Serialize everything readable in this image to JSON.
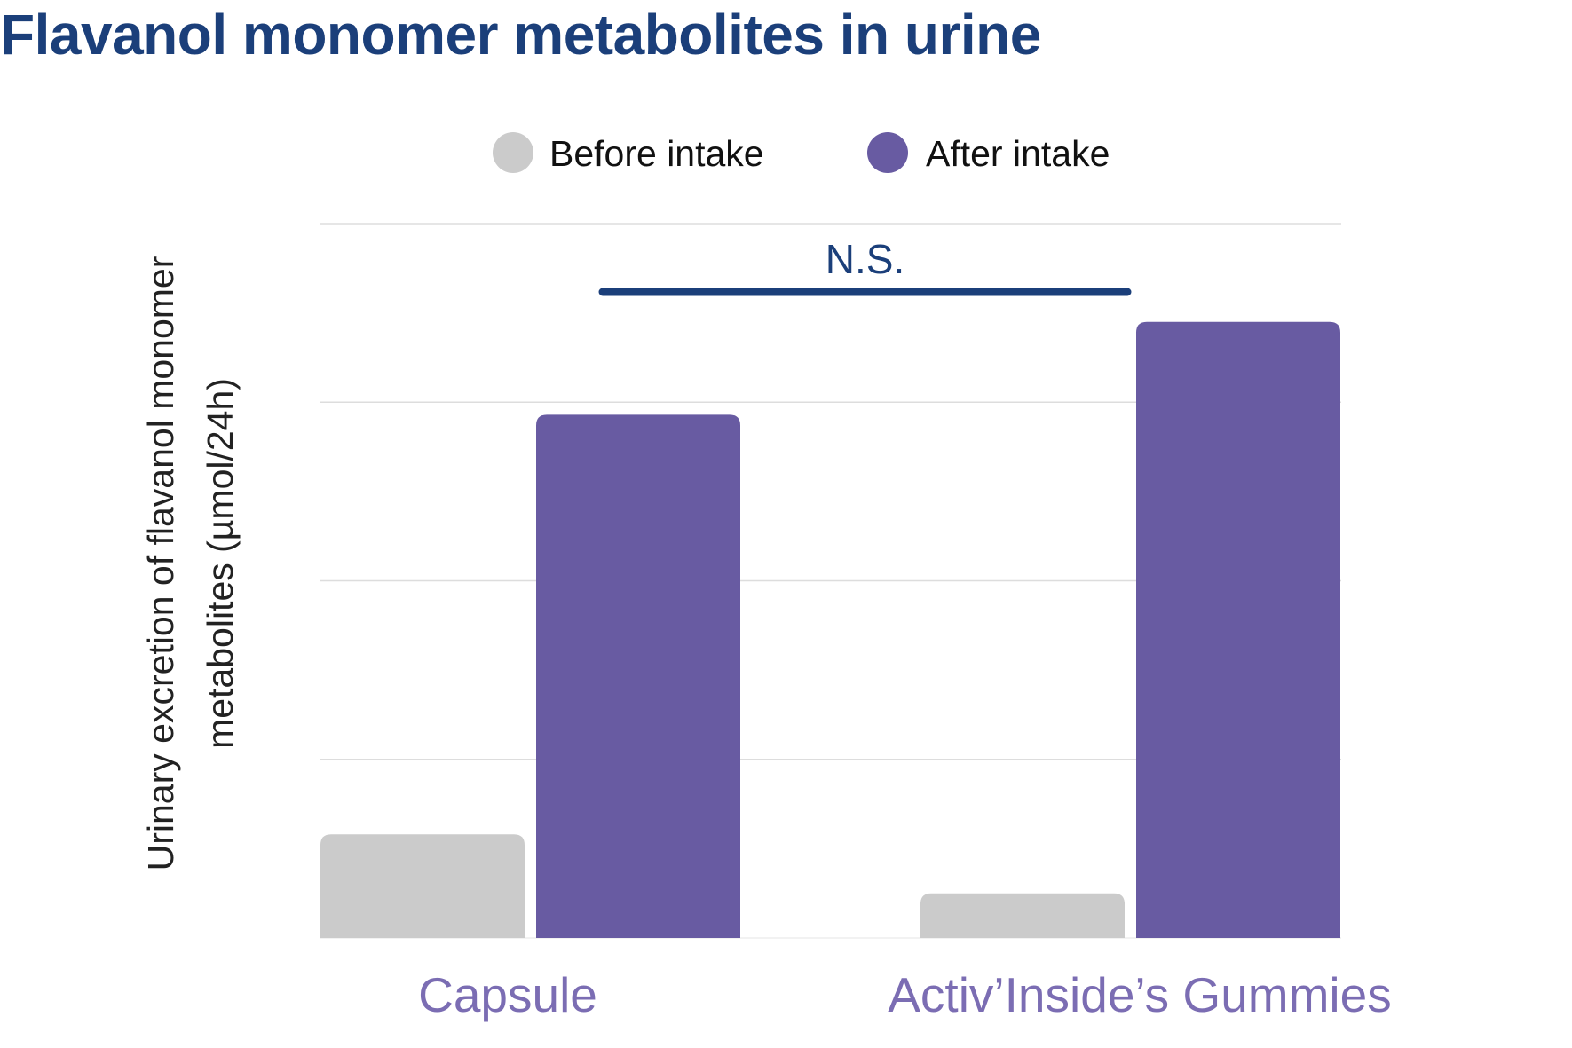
{
  "chart_data": {
    "type": "bar",
    "title": "Flavanol monomer metabolites in urine",
    "ylabel_lines": [
      "Urinary excretion of flavanol monomer",
      "metabolites  (µmol/24h)"
    ],
    "categories": [
      "Capsule",
      "Activ’Inside’s Gummies"
    ],
    "series": [
      {
        "name": "Before intake",
        "color": "#cbcbcb",
        "values": [
          0.58,
          0.25
        ]
      },
      {
        "name": "After intake",
        "color": "#685ba2",
        "values": [
          2.93,
          3.45
        ]
      }
    ],
    "ylim": [
      0,
      4
    ],
    "y_gridlines": [
      1,
      2,
      3,
      4
    ],
    "grid": true,
    "y_tick_labels_shown": false,
    "legend_position": "top-center",
    "annotation": {
      "text": "N.S.",
      "from_category": 0,
      "to_category": 1,
      "color": "#1b3f7a"
    },
    "colors": {
      "title": "#1b3f7a",
      "category_labels": "#7b6db3",
      "grid": "#dddddd"
    }
  }
}
